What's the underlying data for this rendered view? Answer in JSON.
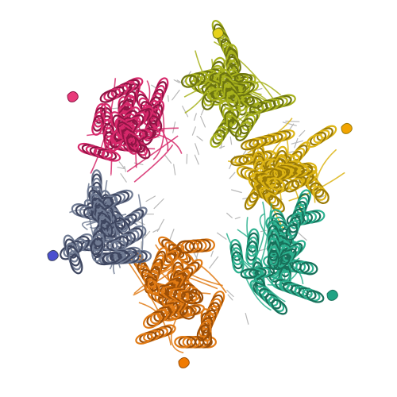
{
  "image": {
    "subject": "protein-hexamer-ribbon",
    "background": "#ffffff",
    "chains": [
      {
        "id": "pink",
        "color": "#d6286a",
        "dark": "#8e1444",
        "tip": "#e83a7a"
      },
      {
        "id": "olive",
        "color": "#a7b21c",
        "dark": "#6c7410",
        "tip": "#e6d21c"
      },
      {
        "id": "yellow",
        "color": "#dcb414",
        "dark": "#9a7a06",
        "tip": "#f2a400"
      },
      {
        "id": "teal",
        "color": "#2bb08e",
        "dark": "#17705a",
        "tip": "#1fa384"
      },
      {
        "id": "orange",
        "color": "#e07a14",
        "dark": "#9c4e06",
        "tip": "#f07a00"
      },
      {
        "id": "slate",
        "color": "#6f7a92",
        "dark": "#3e4660",
        "tip": "#4a4fcf"
      }
    ],
    "ligands_color": "#b8b8b8"
  }
}
